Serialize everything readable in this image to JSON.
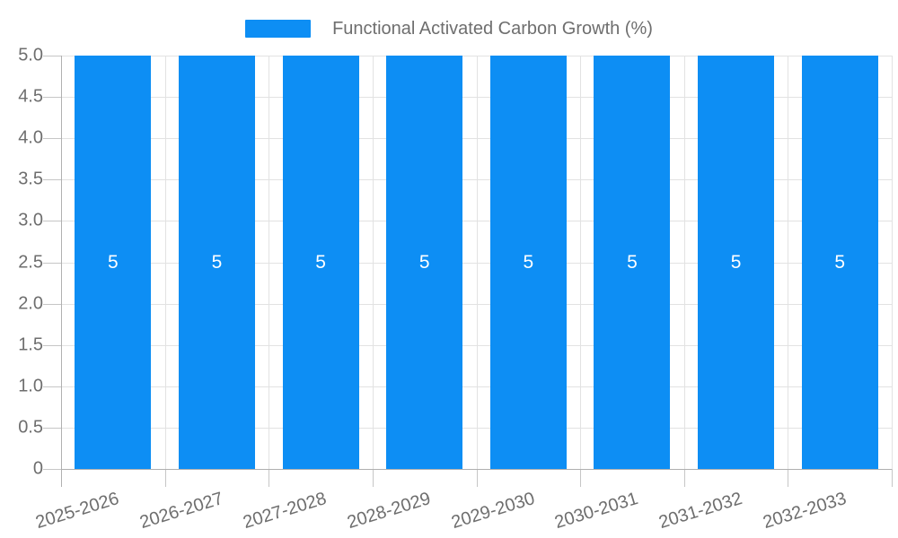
{
  "chart_data": {
    "type": "bar",
    "title": "Functional Activated Carbon Growth (%)",
    "legend": [
      "Functional Activated Carbon Growth (%)"
    ],
    "legend_position": "top-center",
    "categories": [
      "2025-2026",
      "2026-2027",
      "2027-2028",
      "2028-2029",
      "2029-2030",
      "2030-2031",
      "2031-2032",
      "2032-2033"
    ],
    "values": [
      5,
      5,
      5,
      5,
      5,
      5,
      5,
      5
    ],
    "bar_value_labels": [
      "5",
      "5",
      "5",
      "5",
      "5",
      "5",
      "5",
      "5"
    ],
    "xlabel": "",
    "ylabel": "",
    "ylim": [
      0,
      5
    ],
    "ytick_step": 0.5,
    "yticks": [
      "0",
      "0.5",
      "1.0",
      "1.5",
      "2.0",
      "2.5",
      "3.0",
      "3.5",
      "4.0",
      "4.5",
      "5.0"
    ],
    "grid": true,
    "x_label_rotation_deg": -17,
    "colors": {
      "bar": "#0d8ef4",
      "grid": "#e2e2e2",
      "axis": "#b0b0b0",
      "tick": "#c6c6c6",
      "label_text": "#6e6e6e",
      "value_label_text": "#ffffff",
      "background": "#ffffff"
    }
  }
}
